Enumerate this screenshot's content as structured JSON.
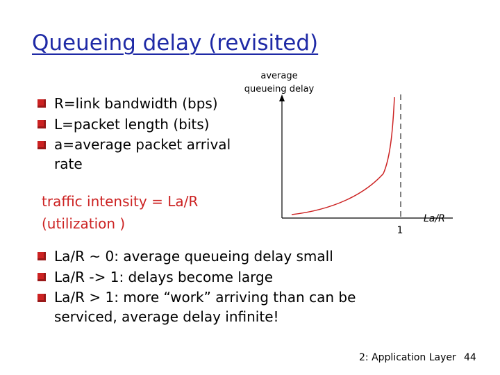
{
  "slide": {
    "title": "Queueing delay (revisited)",
    "title_color": "#1f2aa6",
    "bullet_color": "#cc2222",
    "bullets_top": [
      "R=link bandwidth (bps)",
      "L=packet length (bits)",
      "a=average packet arrival rate"
    ],
    "traffic_intensity": {
      "line1": "traffic intensity = La/R",
      "line2": "(utilization )",
      "color": "#cc2222"
    },
    "bullets_bottom": [
      "La/R ~ 0: average queueing delay small",
      "La/R -> 1: delays become large",
      "La/R > 1: more “work” arriving than can be serviced, average delay infinite!"
    ],
    "footer": "2: Application Layer",
    "page_number": "44"
  },
  "diagram": {
    "y_axis_label_line1": "average",
    "y_axis_label_line2": "queueing delay",
    "x_axis_label": "La/R",
    "x_tick_label": "1",
    "curve_color": "#cc2222"
  }
}
